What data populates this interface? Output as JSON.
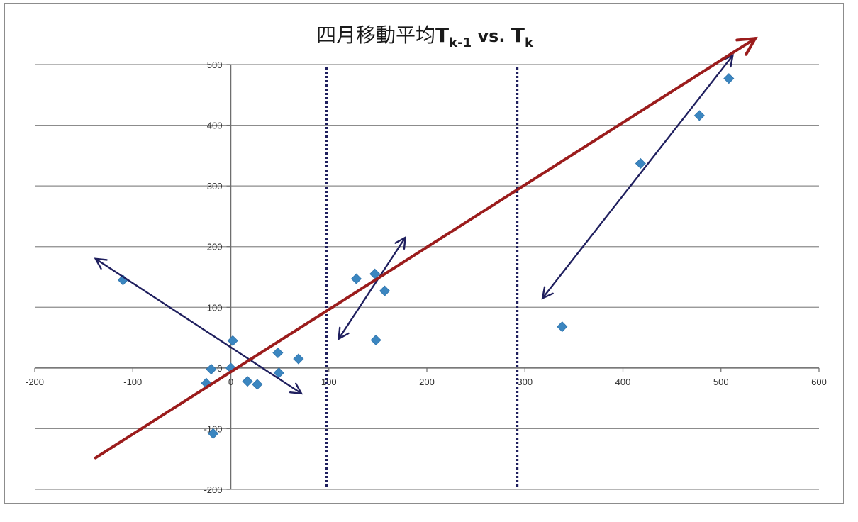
{
  "chart_data": {
    "type": "scatter",
    "title": {
      "text": "四月移動平均",
      "var1": "T",
      "var1_sub": "k-1",
      "mid": " vs. ",
      "var2": "T",
      "var2_sub": "k"
    },
    "xlabel": "",
    "ylabel": "",
    "xlim": [
      -200,
      600
    ],
    "ylim": [
      -200,
      500
    ],
    "x_ticks": [
      -200,
      -100,
      0,
      100,
      200,
      300,
      400,
      500,
      600
    ],
    "y_ticks": [
      -200,
      -100,
      0,
      100,
      200,
      300,
      400,
      500
    ],
    "x_tick_labels": [
      "-200",
      "-100",
      "0",
      "100",
      "200",
      "300",
      "400",
      "500",
      "600"
    ],
    "y_tick_labels": [
      "-200",
      "-100",
      "0",
      "100",
      "200",
      "300",
      "400",
      "500"
    ],
    "grid": {
      "horizontal": true,
      "vertical": false
    },
    "legend": "none",
    "marker": "diamond",
    "colors": {
      "points": "#3b86c0",
      "trend": "#9b1c1c",
      "annotation": "#1f1f5e",
      "dotted": "#1f1f5e",
      "grid": "#8c8c8c"
    },
    "points": [
      {
        "x": -110,
        "y": 145
      },
      {
        "x": -25,
        "y": -25
      },
      {
        "x": -20,
        "y": -2
      },
      {
        "x": -18,
        "y": -108
      },
      {
        "x": 0,
        "y": 0
      },
      {
        "x": 2,
        "y": 45
      },
      {
        "x": 17,
        "y": -22
      },
      {
        "x": 27,
        "y": -27
      },
      {
        "x": 48,
        "y": 25
      },
      {
        "x": 49,
        "y": -8
      },
      {
        "x": 69,
        "y": 15
      },
      {
        "x": 128,
        "y": 147
      },
      {
        "x": 147,
        "y": 155
      },
      {
        "x": 148,
        "y": 46
      },
      {
        "x": 157,
        "y": 127
      },
      {
        "x": 338,
        "y": 68
      },
      {
        "x": 418,
        "y": 337
      },
      {
        "x": 478,
        "y": 416
      },
      {
        "x": 508,
        "y": 477
      }
    ],
    "reference_lines": [
      {
        "orientation": "vertical",
        "x": 98,
        "style": "dotted"
      },
      {
        "orientation": "vertical",
        "x": 292,
        "style": "dotted"
      }
    ],
    "trend_arrow": {
      "from": [
        -138,
        -148
      ],
      "to": [
        535,
        543
      ]
    },
    "annotation_arrows": [
      {
        "from": [
          -138,
          180
        ],
        "to": [
          72,
          -42
        ]
      },
      {
        "from": [
          110,
          48
        ],
        "to": [
          178,
          215
        ]
      },
      {
        "from": [
          318,
          115
        ],
        "to": [
          512,
          515
        ]
      }
    ]
  }
}
